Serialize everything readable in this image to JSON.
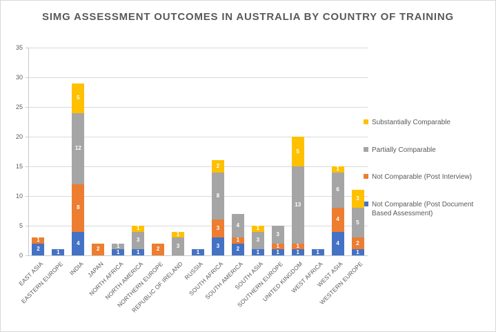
{
  "chart_data": {
    "type": "bar",
    "stacked": true,
    "title": "SIMG ASSESSMENT OUTCOMES IN AUSTRALIA BY COUNTRY OF TRAINING",
    "categories": [
      "EAST ASIA",
      "EASTERN EUROPE",
      "INDIA",
      "JAPAN",
      "NORTH AFRICA",
      "NORTH AMERICA",
      "NORTHERN EUROPE",
      "REPUBLIC OF IRELAND",
      "RUSSIA",
      "SOUTH AFRICA",
      "SOUTH AMERICA",
      "SOUTH ASIA",
      "SOUTHERN EUROPE",
      "UNITED KINGDOM",
      "WEST AFRICA",
      "WEST ASIA",
      "WESTERN EUROPE"
    ],
    "series": [
      {
        "name": "Not Comparable (Post Document Based Assessment)",
        "color": "#4472C4",
        "values": [
          2,
          1,
          4,
          0,
          1,
          1,
          0,
          0,
          1,
          3,
          2,
          1,
          1,
          1,
          1,
          4,
          1
        ]
      },
      {
        "name": "Not Comparable (Post Interview)",
        "color": "#ED7D31",
        "values": [
          1,
          0,
          8,
          2,
          0,
          0,
          2,
          0,
          0,
          3,
          1,
          0,
          1,
          1,
          0,
          4,
          2
        ]
      },
      {
        "name": "Partially Comparable",
        "color": "#A5A5A5",
        "values": [
          0,
          0,
          12,
          0,
          1,
          3,
          0,
          3,
          0,
          8,
          4,
          3,
          3,
          13,
          0,
          6,
          5
        ]
      },
      {
        "name": "Substantially Comparable",
        "color": "#FFC000",
        "values": [
          0,
          0,
          5,
          0,
          0,
          1,
          0,
          1,
          0,
          2,
          0,
          1,
          0,
          5,
          0,
          1,
          3
        ]
      }
    ],
    "totals": [
      3,
      1,
      29,
      2,
      2,
      5,
      2,
      4,
      1,
      16,
      7,
      5,
      5,
      20,
      1,
      15,
      11
    ],
    "legend_top_to_bottom": [
      "Substantially Comparable",
      "Partially Comparable",
      "Not Comparable (Post Interview)",
      "Not Comparable (Post Document Based Assessment)"
    ],
    "ylim": [
      0,
      35
    ],
    "yticks": [
      0,
      5,
      10,
      15,
      20,
      25,
      30,
      35
    ],
    "grid": true,
    "legend_position": "right",
    "colors": {
      "axis_text": "#595959",
      "gridline": "#d9d9d9",
      "data_label": "#ffffff",
      "title_text": "#595959"
    }
  }
}
